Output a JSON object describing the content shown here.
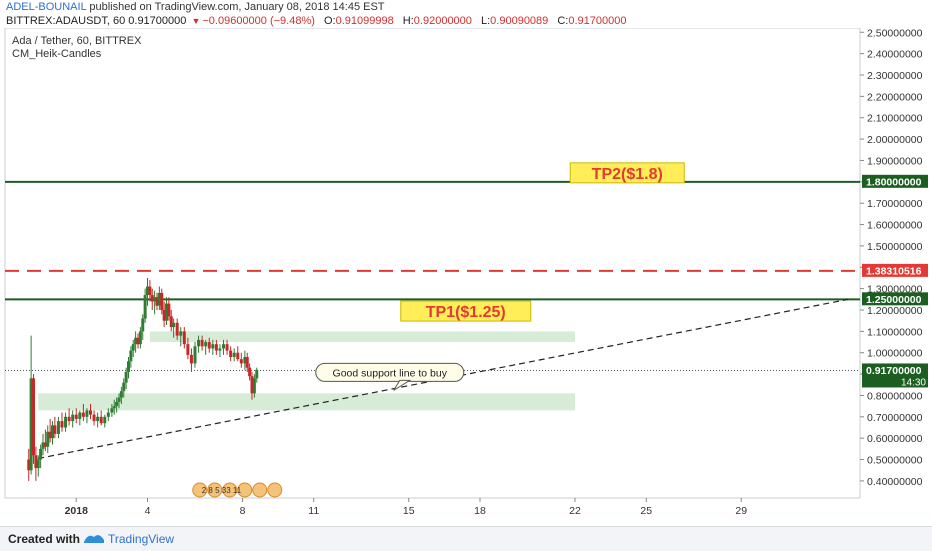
{
  "header": {
    "author": "ADEL-BOUNAIL",
    "published": "published on TradingView.com, January 08, 2018 14:45 EST",
    "symbol": "BITTREX:ADAUSDT, 60",
    "price": "0.91700000",
    "change": "−0.09600000 (−9.48%)",
    "o_label": "O:",
    "o_value": "0.91099998",
    "h_label": "H:",
    "h_value": "0.92000000",
    "l_label": "L:",
    "l_value": "0.90090089",
    "c_label": "C:",
    "c_value": "0.91700000"
  },
  "legend": {
    "title": "Ada / Tether, 60, BITTREX",
    "indicator": "CM_Heik-Candles"
  },
  "footer": {
    "created_with": "Created with",
    "brand": "TradingView"
  },
  "colors": {
    "up": "#2e7d32",
    "down": "#c62828",
    "level_line": "#1b5e20",
    "dashed_red": "#e53935",
    "zone_fill": "#c8e6c9",
    "label_bg": "#ffee58",
    "label_text": "#e53935"
  },
  "chart_data": {
    "type": "candlestick",
    "title": "Ada / Tether, 60, BITTREX",
    "ylim": [
      0.32,
      2.52
    ],
    "xlim": [
      -2,
      34
    ],
    "y_ticks": [
      "2.50000000",
      "2.40000000",
      "2.30000000",
      "2.20000000",
      "2.10000000",
      "2.00000000",
      "1.90000000",
      "1.80000000",
      "1.70000000",
      "1.60000000",
      "1.50000000",
      "1.40000000",
      "1.30000000",
      "1.20000000",
      "1.10000000",
      "1.00000000",
      "0.90000000",
      "0.80000000",
      "0.70000000",
      "0.60000000",
      "0.50000000",
      "0.40000000"
    ],
    "x_ticks": [
      {
        "label": "2018",
        "day": 1
      },
      {
        "label": "4",
        "day": 4
      },
      {
        "label": "8",
        "day": 8
      },
      {
        "label": "11",
        "day": 11
      },
      {
        "label": "15",
        "day": 15
      },
      {
        "label": "18",
        "day": 18
      },
      {
        "label": "22",
        "day": 22
      },
      {
        "label": "25",
        "day": 25
      },
      {
        "label": "29",
        "day": 29
      }
    ],
    "price_labels": [
      {
        "value": 1.8,
        "text": "1.80000000",
        "color": "#1b5e20"
      },
      {
        "value": 1.38310516,
        "text": "1.38310516",
        "color": "#e53935"
      },
      {
        "value": 1.25,
        "text": "1.25000000",
        "color": "#1b5e20"
      },
      {
        "value": 0.917,
        "text": "0.91700000",
        "color": "#1b5e20",
        "sub": "14:30"
      }
    ],
    "horizontal_lines": [
      {
        "value": 1.8,
        "style": "solid",
        "color": "#1b5e20"
      },
      {
        "value": 1.38310516,
        "style": "dashed",
        "color": "#e53935"
      },
      {
        "value": 1.25,
        "style": "solid",
        "color": "#1b5e20"
      },
      {
        "value": 0.917,
        "style": "dotted",
        "color": "#555555"
      }
    ],
    "zones": [
      {
        "x1": 4.1,
        "x2": 22,
        "y1": 1.05,
        "y2": 1.1
      },
      {
        "x1": -0.6,
        "x2": 22,
        "y1": 0.73,
        "y2": 0.81
      }
    ],
    "trendline": {
      "x1": -0.6,
      "y1": 0.505,
      "x2": 33.5,
      "y2": 1.25
    },
    "annotations": [
      {
        "text": "TP2($1.8)",
        "x": 24.2,
        "y": 1.842
      },
      {
        "text": "TP1($1.25)",
        "x": 17.4,
        "y": 1.195
      },
      {
        "text": "Good support line to buy",
        "x": 14.2,
        "y": 0.908
      }
    ],
    "events_text": "2 8 5 33 11",
    "candles": [
      [
        -1.0,
        0.5,
        0.55,
        0.4,
        0.45
      ],
      [
        -0.9,
        0.45,
        1.08,
        0.43,
        0.88
      ],
      [
        -0.8,
        0.88,
        0.9,
        0.48,
        0.52
      ],
      [
        -0.7,
        0.52,
        0.56,
        0.4,
        0.46
      ],
      [
        -0.6,
        0.46,
        0.52,
        0.42,
        0.5
      ],
      [
        -0.5,
        0.5,
        0.57,
        0.46,
        0.55
      ],
      [
        -0.4,
        0.55,
        0.62,
        0.52,
        0.58
      ],
      [
        -0.3,
        0.58,
        0.64,
        0.54,
        0.56
      ],
      [
        -0.2,
        0.56,
        0.66,
        0.53,
        0.63
      ],
      [
        -0.1,
        0.63,
        0.69,
        0.58,
        0.6
      ],
      [
        0.0,
        0.6,
        0.68,
        0.57,
        0.66
      ],
      [
        0.1,
        0.66,
        0.7,
        0.6,
        0.62
      ],
      [
        0.25,
        0.62,
        0.7,
        0.6,
        0.68
      ],
      [
        0.4,
        0.68,
        0.72,
        0.63,
        0.65
      ],
      [
        0.55,
        0.65,
        0.72,
        0.63,
        0.7
      ],
      [
        0.7,
        0.7,
        0.74,
        0.66,
        0.68
      ],
      [
        0.85,
        0.68,
        0.73,
        0.65,
        0.71
      ],
      [
        1.0,
        0.71,
        0.74,
        0.67,
        0.69
      ],
      [
        1.15,
        0.69,
        0.73,
        0.66,
        0.72
      ],
      [
        1.3,
        0.72,
        0.76,
        0.68,
        0.7
      ],
      [
        1.45,
        0.7,
        0.74,
        0.67,
        0.73
      ],
      [
        1.6,
        0.73,
        0.76,
        0.69,
        0.71
      ],
      [
        1.75,
        0.71,
        0.73,
        0.66,
        0.68
      ],
      [
        1.9,
        0.68,
        0.72,
        0.65,
        0.7
      ],
      [
        2.05,
        0.7,
        0.73,
        0.66,
        0.67
      ],
      [
        2.2,
        0.67,
        0.71,
        0.65,
        0.7
      ],
      [
        2.35,
        0.7,
        0.74,
        0.68,
        0.72
      ],
      [
        2.5,
        0.72,
        0.76,
        0.7,
        0.74
      ],
      [
        2.6,
        0.74,
        0.78,
        0.71,
        0.75
      ],
      [
        2.7,
        0.75,
        0.79,
        0.72,
        0.77
      ],
      [
        2.8,
        0.77,
        0.81,
        0.74,
        0.79
      ],
      [
        2.9,
        0.79,
        0.84,
        0.76,
        0.82
      ],
      [
        3.0,
        0.82,
        0.88,
        0.79,
        0.86
      ],
      [
        3.1,
        0.86,
        0.93,
        0.83,
        0.91
      ],
      [
        3.2,
        0.91,
        0.98,
        0.88,
        0.96
      ],
      [
        3.3,
        0.96,
        1.03,
        0.93,
        1.01
      ],
      [
        3.4,
        1.01,
        1.06,
        0.98,
        1.04
      ],
      [
        3.5,
        1.04,
        1.1,
        1.0,
        1.07
      ],
      [
        3.6,
        1.07,
        1.09,
        1.02,
        1.04
      ],
      [
        3.7,
        1.04,
        1.12,
        1.02,
        1.1
      ],
      [
        3.8,
        1.1,
        1.18,
        1.06,
        1.16
      ],
      [
        3.9,
        1.16,
        1.3,
        1.14,
        1.27
      ],
      [
        4.0,
        1.27,
        1.35,
        1.22,
        1.31
      ],
      [
        4.1,
        1.31,
        1.34,
        1.24,
        1.27
      ],
      [
        4.2,
        1.27,
        1.3,
        1.2,
        1.24
      ],
      [
        4.3,
        1.24,
        1.29,
        1.18,
        1.26
      ],
      [
        4.4,
        1.26,
        1.28,
        1.2,
        1.22
      ],
      [
        4.5,
        1.22,
        1.31,
        1.2,
        1.28
      ],
      [
        4.6,
        1.28,
        1.3,
        1.18,
        1.2
      ],
      [
        4.7,
        1.2,
        1.24,
        1.12,
        1.15
      ],
      [
        4.8,
        1.15,
        1.26,
        1.13,
        1.23
      ],
      [
        4.9,
        1.23,
        1.26,
        1.15,
        1.17
      ],
      [
        5.0,
        1.17,
        1.2,
        1.1,
        1.12
      ],
      [
        5.1,
        1.12,
        1.16,
        1.07,
        1.14
      ],
      [
        5.25,
        1.14,
        1.16,
        1.06,
        1.08
      ],
      [
        5.4,
        1.08,
        1.12,
        1.03,
        1.1
      ],
      [
        5.55,
        1.1,
        1.12,
        1.02,
        1.04
      ],
      [
        5.7,
        1.04,
        1.07,
        0.97,
        0.99
      ],
      [
        5.85,
        0.99,
        1.02,
        0.91,
        0.95
      ],
      [
        6.0,
        0.95,
        1.05,
        0.93,
        1.03
      ],
      [
        6.15,
        1.03,
        1.08,
        1.0,
        1.06
      ],
      [
        6.3,
        1.06,
        1.08,
        1.01,
        1.03
      ],
      [
        6.45,
        1.03,
        1.06,
        0.99,
        1.05
      ],
      [
        6.6,
        1.05,
        1.07,
        1.0,
        1.02
      ],
      [
        6.75,
        1.02,
        1.06,
        0.99,
        1.04
      ],
      [
        6.9,
        1.04,
        1.06,
        0.99,
        1.01
      ],
      [
        7.05,
        1.01,
        1.04,
        0.98,
        1.02
      ],
      [
        7.2,
        1.02,
        1.06,
        0.99,
        1.04
      ],
      [
        7.35,
        1.04,
        1.06,
        0.99,
        1.01
      ],
      [
        7.5,
        1.01,
        1.03,
        0.96,
        0.98
      ],
      [
        7.65,
        0.98,
        1.02,
        0.96,
        1.0
      ],
      [
        7.8,
        1.0,
        1.03,
        0.96,
        0.97
      ],
      [
        7.95,
        0.97,
        1.0,
        0.93,
        0.95
      ],
      [
        8.1,
        0.95,
        1.01,
        0.92,
        0.98
      ],
      [
        8.2,
        0.98,
        1.0,
        0.91,
        0.93
      ],
      [
        8.3,
        0.93,
        0.95,
        0.87,
        0.89
      ],
      [
        8.4,
        0.89,
        0.91,
        0.78,
        0.81
      ],
      [
        8.5,
        0.81,
        0.9,
        0.79,
        0.88
      ],
      [
        8.6,
        0.88,
        0.93,
        0.86,
        0.92
      ]
    ]
  }
}
